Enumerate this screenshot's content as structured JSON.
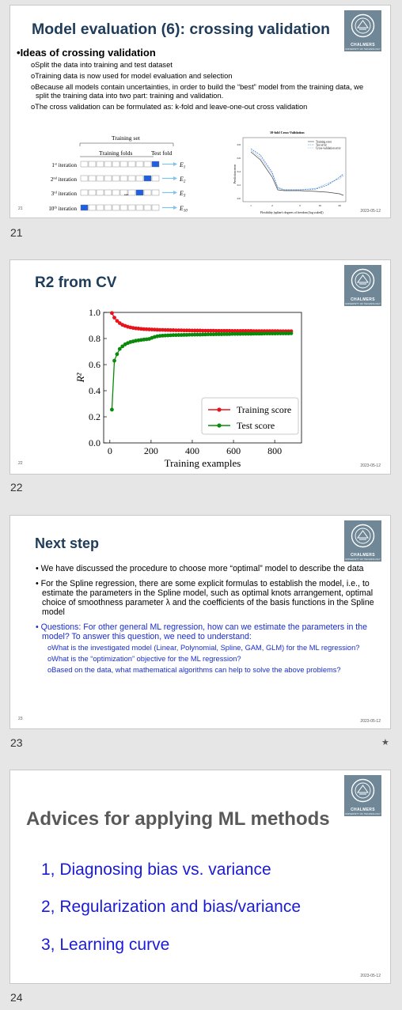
{
  "slides": [
    {
      "number": "21",
      "title": "Model evaluation (6): crossing validation",
      "heading": "Ideas of crossing validation",
      "bullets": [
        "Split the data into training and test dataset",
        "Training data is now used for model evaluation and selection",
        "Because all models contain uncertainties, in order to build the “best” model from the training data, we split the training data into two part: training and validation.",
        "The cross validation can be formulated as: k-fold and leave-one-out cross validation"
      ],
      "kfold_diagram": {
        "set_label": "Training set",
        "folds_label": "Training folds",
        "test_label": "Test fold",
        "ellipsis": "•••",
        "iterations": [
          {
            "label": "1st iteration",
            "ord": "1",
            "sup": "st",
            "test_index": 9,
            "error": "E",
            "err_sub": "1"
          },
          {
            "label": "2nd iteration",
            "ord": "2",
            "sup": "nd",
            "test_index": 8,
            "error": "E",
            "err_sub": "2"
          },
          {
            "label": "3rd iteration",
            "ord": "3",
            "sup": "rd",
            "test_index": 7,
            "error": "E",
            "err_sub": "3"
          },
          {
            "label": "10th iteration",
            "ord": "10",
            "sup": "th",
            "test_index": 0,
            "error": "E",
            "err_sub": "10"
          }
        ]
      },
      "thumb_chart": {
        "title": "10-fold Cross-Validation",
        "legend": [
          "Training error",
          "Test error",
          "Cross-validation error"
        ],
        "ylabel": "Prediction error",
        "xlabel": "Flexibility (spline's degrees of freedom [log scaled])",
        "xticks": [
          "1",
          "2",
          "5",
          "10",
          "20"
        ],
        "yticks": [
          "0.0",
          "0.2",
          "0.4",
          "0.6",
          "0.8"
        ]
      },
      "footer_num": "21",
      "date": "2023-05-12"
    },
    {
      "number": "22",
      "title": "R2 from CV",
      "footer_num": "22",
      "date": "2023-05-12"
    },
    {
      "number": "23",
      "title": "Next step",
      "bullets": [
        "We have discussed the procedure to choose more “optimal” model to describe the data",
        "For the Spline regression, there are some explicit formulas to establish the model, i.e., to estimate the parameters in the Spline model, such as optimal knots arrangement, optimal choice of smoothness parameter λ and the coefficients of the basis functions in the Spline model",
        "Questions: For other general ML regression, how can we estimate the parameters in the model? To answer this question, we need to understand:"
      ],
      "sub_bullets": [
        "What is the investigated model (Linear, Polynomial, Spline, GAM, GLM) for the ML regression?",
        "What is the “optimization” objective for the ML regression?",
        "Based on the data, what mathematical algorithms can help to solve the above problems?"
      ],
      "footer_num": "23",
      "date": "2023-05-12"
    },
    {
      "number": "24",
      "title": "Advices for applying ML methods",
      "items": [
        "1, Diagnosing bias vs. variance",
        "2, Regularization and bias/variance",
        "3, Learning curve"
      ],
      "date": "2023-05-12"
    }
  ],
  "logo": {
    "label": "CHALMERS",
    "sub": "UNIVERSITY OF TECHNOLOGY"
  },
  "chart_data": {
    "type": "line",
    "title": "",
    "xlabel": "Training examples",
    "ylabel": "R²",
    "xlim": [
      -30,
      930
    ],
    "ylim": [
      0.0,
      1.0
    ],
    "xticks": [
      0,
      200,
      400,
      600,
      800
    ],
    "yticks": [
      0.0,
      0.2,
      0.4,
      0.6,
      0.8,
      1.0
    ],
    "legend_position": "bottom-right",
    "series": [
      {
        "name": "Training score",
        "color": "#e8141c",
        "x": [
          10,
          22,
          35,
          48,
          61,
          74,
          87,
          100,
          113,
          126,
          139,
          152,
          165,
          178,
          191,
          204,
          217,
          230,
          243,
          256,
          269,
          282,
          295,
          308,
          321,
          334,
          347,
          360,
          373,
          386,
          399,
          412,
          425,
          438,
          451,
          464,
          477,
          490,
          503,
          516,
          529,
          542,
          555,
          568,
          581,
          594,
          607,
          620,
          633,
          646,
          659,
          672,
          685,
          698,
          711,
          724,
          737,
          750,
          763,
          776,
          789,
          802,
          815,
          828,
          841,
          854,
          867,
          880
        ],
        "y": [
          0.995,
          0.96,
          0.935,
          0.918,
          0.905,
          0.897,
          0.89,
          0.885,
          0.881,
          0.878,
          0.876,
          0.874,
          0.872,
          0.871,
          0.87,
          0.869,
          0.868,
          0.867,
          0.866,
          0.866,
          0.865,
          0.865,
          0.864,
          0.864,
          0.863,
          0.863,
          0.863,
          0.862,
          0.862,
          0.862,
          0.861,
          0.861,
          0.861,
          0.861,
          0.86,
          0.86,
          0.86,
          0.86,
          0.86,
          0.859,
          0.859,
          0.859,
          0.859,
          0.859,
          0.859,
          0.858,
          0.858,
          0.858,
          0.858,
          0.858,
          0.858,
          0.858,
          0.858,
          0.857,
          0.857,
          0.857,
          0.857,
          0.857,
          0.857,
          0.857,
          0.857,
          0.857,
          0.857,
          0.856,
          0.856,
          0.856,
          0.856,
          0.856
        ]
      },
      {
        "name": "Test score",
        "color": "#0a8a0a",
        "x": [
          10,
          22,
          35,
          48,
          61,
          74,
          87,
          100,
          113,
          126,
          139,
          152,
          165,
          178,
          191,
          204,
          217,
          230,
          243,
          256,
          269,
          282,
          295,
          308,
          321,
          334,
          347,
          360,
          373,
          386,
          399,
          412,
          425,
          438,
          451,
          464,
          477,
          490,
          503,
          516,
          529,
          542,
          555,
          568,
          581,
          594,
          607,
          620,
          633,
          646,
          659,
          672,
          685,
          698,
          711,
          724,
          737,
          750,
          763,
          776,
          789,
          802,
          815,
          828,
          841,
          854,
          867,
          880
        ],
        "y": [
          0.255,
          0.63,
          0.68,
          0.72,
          0.74,
          0.755,
          0.765,
          0.773,
          0.778,
          0.783,
          0.786,
          0.789,
          0.792,
          0.794,
          0.797,
          0.805,
          0.812,
          0.817,
          0.82,
          0.822,
          0.823,
          0.824,
          0.825,
          0.826,
          0.826,
          0.827,
          0.827,
          0.828,
          0.828,
          0.829,
          0.829,
          0.83,
          0.83,
          0.83,
          0.831,
          0.831,
          0.832,
          0.832,
          0.832,
          0.833,
          0.833,
          0.833,
          0.834,
          0.834,
          0.834,
          0.835,
          0.835,
          0.835,
          0.835,
          0.836,
          0.836,
          0.836,
          0.836,
          0.837,
          0.837,
          0.837,
          0.837,
          0.838,
          0.838,
          0.838,
          0.838,
          0.838,
          0.839,
          0.839,
          0.839,
          0.839,
          0.839,
          0.84
        ]
      }
    ]
  }
}
